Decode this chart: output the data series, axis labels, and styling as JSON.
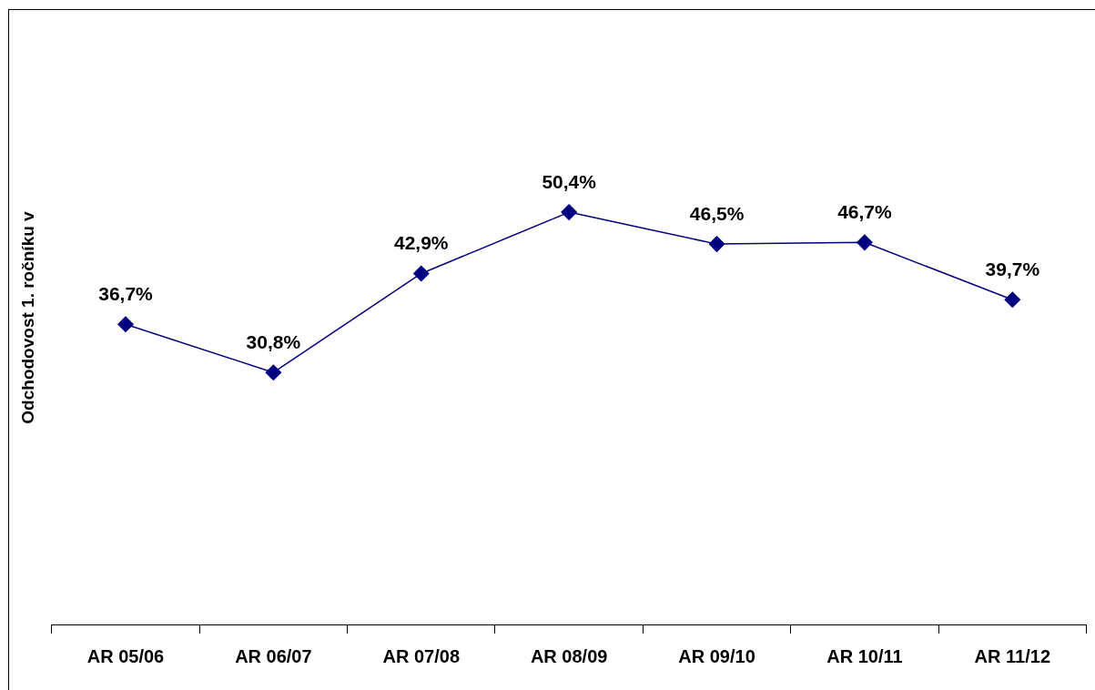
{
  "chart_data": {
    "type": "line",
    "ylabel": "Odchodovost 1. ročníku v",
    "categories": [
      "AR 05/06",
      "AR 06/07",
      "AR 07/08",
      "AR 08/09",
      "AR 09/10",
      "AR 10/11",
      "AR 11/12"
    ],
    "series": [
      {
        "color": "#000080",
        "values": [
          36.7,
          30.8,
          42.9,
          50.4,
          46.5,
          46.7,
          39.7
        ],
        "value_labels": [
          "36,7%",
          "30,8%",
          "42,9%",
          "50,4%",
          "46,5%",
          "46,7%",
          "39,7%"
        ]
      }
    ],
    "ylim": [
      0,
      75
    ],
    "tick_labels": "x",
    "grid": false,
    "legend": false,
    "marker": "diamond",
    "line_style": "solid"
  }
}
